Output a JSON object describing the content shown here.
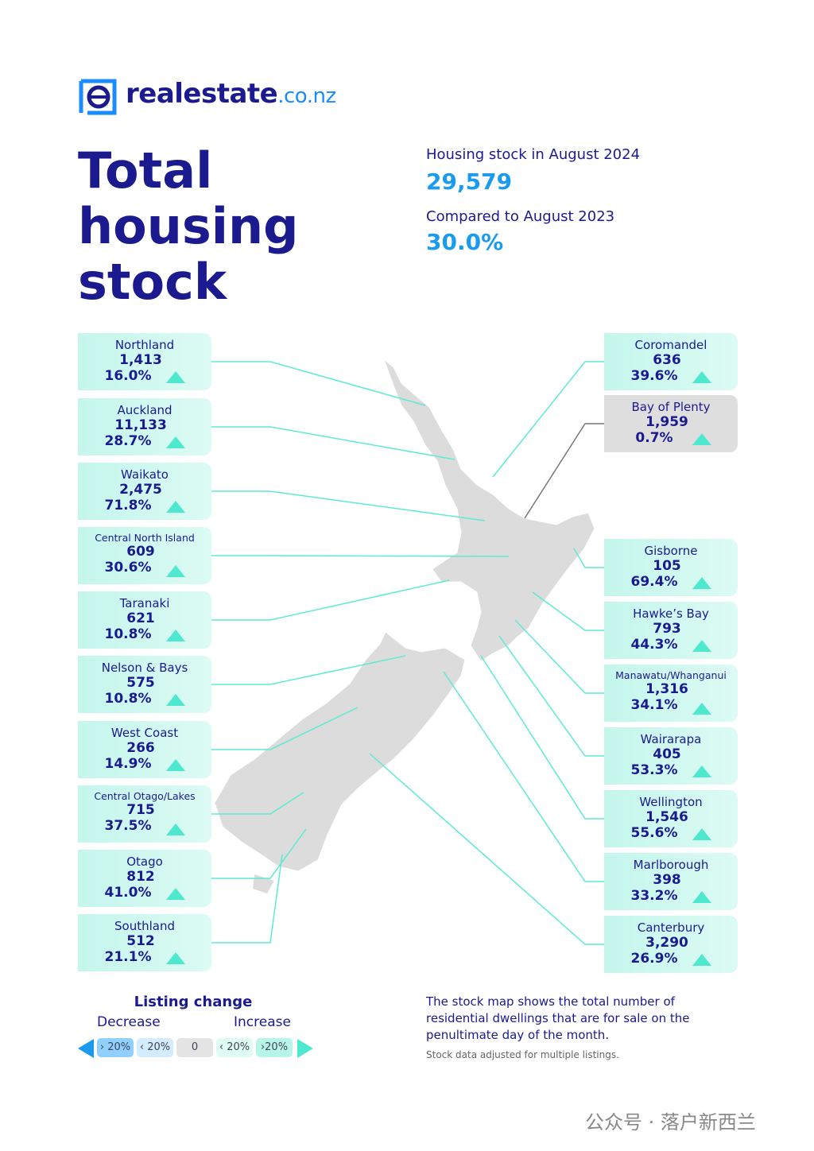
{
  "header": {
    "brand": "realestate",
    "brand_suffix": ".co.nz"
  },
  "title_lines": [
    "Total",
    "housing",
    "stock"
  ],
  "stats": {
    "stock_label": "Housing stock in August 2024",
    "stock_value": "29,579",
    "compare_label": "Compared to August 2023",
    "compare_value": "30.0%"
  },
  "regions": [
    {
      "name": "Northland",
      "count": "1,413",
      "change": "16.0%"
    },
    {
      "name": "Auckland",
      "count": "11,133",
      "change": "28.7%"
    },
    {
      "name": "Waikato",
      "count": "2,475",
      "change": "71.8%"
    },
    {
      "name": "Central North Island",
      "count": "609",
      "change": "30.6%"
    },
    {
      "name": "Taranaki",
      "count": "621",
      "change": "10.8%"
    },
    {
      "name": "Nelson & Bays",
      "count": "575",
      "change": "10.8%"
    },
    {
      "name": "West Coast",
      "count": "266",
      "change": "14.9%"
    },
    {
      "name": "Central Otago/Lakes",
      "count": "715",
      "change": "37.5%"
    },
    {
      "name": "Otago",
      "count": "812",
      "change": "41.0%"
    },
    {
      "name": "Southland",
      "count": "512",
      "change": "21.1%"
    },
    {
      "name": "Coromandel",
      "count": "636",
      "change": "39.6%"
    },
    {
      "name": "Bay of Plenty",
      "count": "1,959",
      "change": "0.7%"
    },
    {
      "name": "Gisborne",
      "count": "105",
      "change": "69.4%"
    },
    {
      "name": "Hawke’s Bay",
      "count": "793",
      "change": "44.3%"
    },
    {
      "name": "Manawatu/Whanganui",
      "count": "1,316",
      "change": "34.1%"
    },
    {
      "name": "Wairarapa",
      "count": "405",
      "change": "53.3%"
    },
    {
      "name": "Wellington",
      "count": "1,546",
      "change": "55.6%"
    },
    {
      "name": "Marlborough",
      "count": "398",
      "change": "33.2%"
    },
    {
      "name": "Canterbury",
      "count": "3,290",
      "change": "26.9%"
    }
  ],
  "legend": {
    "title": "Listing change",
    "decrease": "Decrease",
    "increase": "Increase",
    "chips": [
      "› 20%",
      "‹ 20%",
      "0",
      "‹ 20%",
      "›20%"
    ]
  },
  "footer": {
    "description": "The stock map shows the total number of residential dwellings that are for sale on the penultimate day of the month.",
    "note": "Stock data adjusted for multiple listings.",
    "watermark": "公众号 · 落户新西兰"
  }
}
